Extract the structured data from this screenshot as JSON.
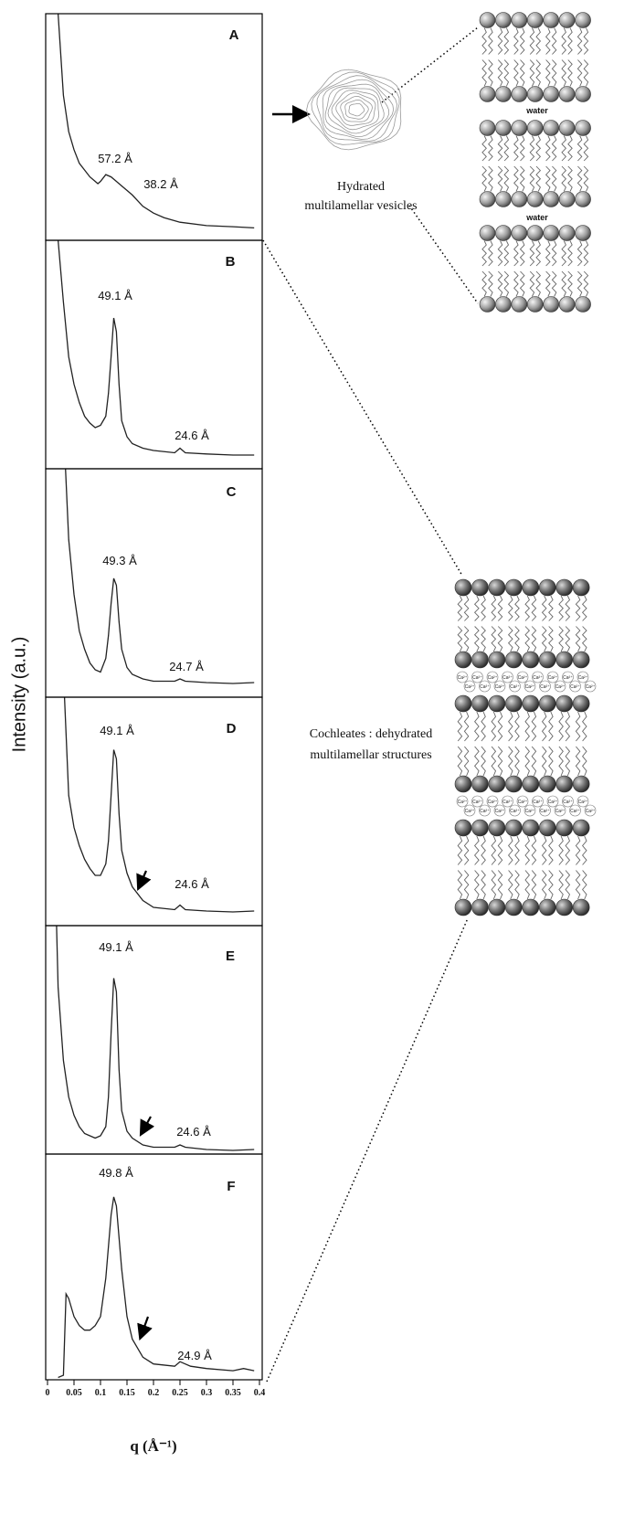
{
  "y_label": "Intensity (a.u.)",
  "x_label": "q (Å⁻¹)",
  "diagram": {
    "vesicle_label": [
      "Hydrated",
      "multilamellar vesicles"
    ],
    "water": "water",
    "cochleate_label": [
      "Cochleates : dehydrated",
      "multilamellar structures"
    ],
    "calcium": "Ca²⁺"
  },
  "chart_data": [
    {
      "type": "line",
      "title": "A",
      "color": "#222",
      "xlim": [
        0,
        0.4
      ],
      "ylim": [
        0,
        1
      ],
      "annotations": [
        "57.2 Å",
        "38.2 Å"
      ],
      "x": [
        0.02,
        0.03,
        0.04,
        0.05,
        0.06,
        0.07,
        0.08,
        0.09,
        0.095,
        0.1,
        0.11,
        0.12,
        0.13,
        0.14,
        0.15,
        0.16,
        0.18,
        0.2,
        0.22,
        0.25,
        0.3,
        0.35,
        0.39
      ],
      "values": [
        1.0,
        0.64,
        0.48,
        0.4,
        0.34,
        0.31,
        0.28,
        0.26,
        0.25,
        0.26,
        0.29,
        0.28,
        0.26,
        0.24,
        0.22,
        0.2,
        0.15,
        0.12,
        0.1,
        0.08,
        0.065,
        0.06,
        0.055
      ]
    },
    {
      "type": "line",
      "title": "B",
      "color": "#222",
      "xlim": [
        0,
        0.4
      ],
      "ylim": [
        0,
        1
      ],
      "annotations": [
        "49.1 Å",
        "24.6 Å"
      ],
      "x": [
        0.02,
        0.03,
        0.04,
        0.05,
        0.06,
        0.07,
        0.08,
        0.09,
        0.1,
        0.11,
        0.115,
        0.12,
        0.125,
        0.13,
        0.135,
        0.14,
        0.15,
        0.16,
        0.18,
        0.2,
        0.24,
        0.25,
        0.26,
        0.3,
        0.35,
        0.39
      ],
      "values": [
        1.0,
        0.73,
        0.49,
        0.37,
        0.29,
        0.23,
        0.2,
        0.18,
        0.19,
        0.23,
        0.33,
        0.49,
        0.66,
        0.6,
        0.37,
        0.21,
        0.14,
        0.11,
        0.09,
        0.08,
        0.07,
        0.09,
        0.07,
        0.065,
        0.06,
        0.06
      ]
    },
    {
      "type": "line",
      "title": "C",
      "color": "#222",
      "xlim": [
        0,
        0.4
      ],
      "ylim": [
        0,
        1
      ],
      "annotations": [
        "49.3 Å",
        "24.7 Å"
      ],
      "x": [
        0.034,
        0.04,
        0.05,
        0.06,
        0.07,
        0.08,
        0.09,
        0.1,
        0.11,
        0.115,
        0.12,
        0.125,
        0.13,
        0.135,
        0.14,
        0.15,
        0.16,
        0.18,
        0.2,
        0.24,
        0.25,
        0.26,
        0.3,
        0.35,
        0.39
      ],
      "values": [
        1.0,
        0.69,
        0.45,
        0.29,
        0.21,
        0.15,
        0.12,
        0.11,
        0.17,
        0.27,
        0.41,
        0.52,
        0.49,
        0.33,
        0.21,
        0.13,
        0.1,
        0.08,
        0.07,
        0.07,
        0.08,
        0.07,
        0.064,
        0.06,
        0.064
      ]
    },
    {
      "type": "line",
      "title": "D",
      "color": "#222",
      "xlim": [
        0,
        0.4
      ],
      "ylim": [
        0,
        1
      ],
      "annotations": [
        "49.1 Å",
        "24.6 Å"
      ],
      "x": [
        0.032,
        0.04,
        0.05,
        0.06,
        0.07,
        0.08,
        0.09,
        0.1,
        0.11,
        0.115,
        0.12,
        0.125,
        0.13,
        0.135,
        0.14,
        0.15,
        0.16,
        0.18,
        0.2,
        0.24,
        0.25,
        0.26,
        0.3,
        0.35,
        0.39
      ],
      "values": [
        1.0,
        0.57,
        0.43,
        0.35,
        0.29,
        0.25,
        0.22,
        0.22,
        0.27,
        0.37,
        0.57,
        0.77,
        0.73,
        0.49,
        0.33,
        0.23,
        0.17,
        0.11,
        0.08,
        0.07,
        0.09,
        0.07,
        0.064,
        0.06,
        0.064
      ]
    },
    {
      "type": "line",
      "title": "E",
      "color": "#222",
      "xlim": [
        0,
        0.4
      ],
      "ylim": [
        0,
        1
      ],
      "annotations": [
        "49.1 Å",
        "24.6 Å"
      ],
      "x": [
        0.017,
        0.02,
        0.03,
        0.04,
        0.05,
        0.06,
        0.07,
        0.08,
        0.09,
        0.1,
        0.11,
        0.115,
        0.12,
        0.125,
        0.13,
        0.135,
        0.14,
        0.15,
        0.16,
        0.18,
        0.2,
        0.24,
        0.25,
        0.26,
        0.3,
        0.35,
        0.39
      ],
      "values": [
        1.0,
        0.73,
        0.41,
        0.25,
        0.17,
        0.12,
        0.09,
        0.08,
        0.07,
        0.08,
        0.12,
        0.25,
        0.53,
        0.77,
        0.71,
        0.37,
        0.19,
        0.1,
        0.07,
        0.04,
        0.03,
        0.03,
        0.04,
        0.03,
        0.02,
        0.016,
        0.02
      ]
    },
    {
      "type": "line",
      "title": "F",
      "color": "#222",
      "xlim": [
        0,
        0.4
      ],
      "ylim": [
        0,
        1
      ],
      "xticks": [
        0,
        0.05,
        0.1,
        0.15,
        0.2,
        0.25,
        0.3,
        0.35,
        0.4
      ],
      "annotations": [
        "49.8 Å",
        "24.9 Å"
      ],
      "x": [
        0.02,
        0.03,
        0.035,
        0.04,
        0.05,
        0.06,
        0.07,
        0.08,
        0.09,
        0.1,
        0.11,
        0.12,
        0.125,
        0.13,
        0.14,
        0.15,
        0.16,
        0.18,
        0.2,
        0.24,
        0.25,
        0.27,
        0.3,
        0.35,
        0.37,
        0.39
      ],
      "values": [
        0.01,
        0.02,
        0.38,
        0.36,
        0.28,
        0.24,
        0.22,
        0.22,
        0.24,
        0.28,
        0.45,
        0.73,
        0.81,
        0.77,
        0.49,
        0.28,
        0.18,
        0.1,
        0.07,
        0.06,
        0.08,
        0.06,
        0.05,
        0.04,
        0.05,
        0.04
      ]
    }
  ]
}
